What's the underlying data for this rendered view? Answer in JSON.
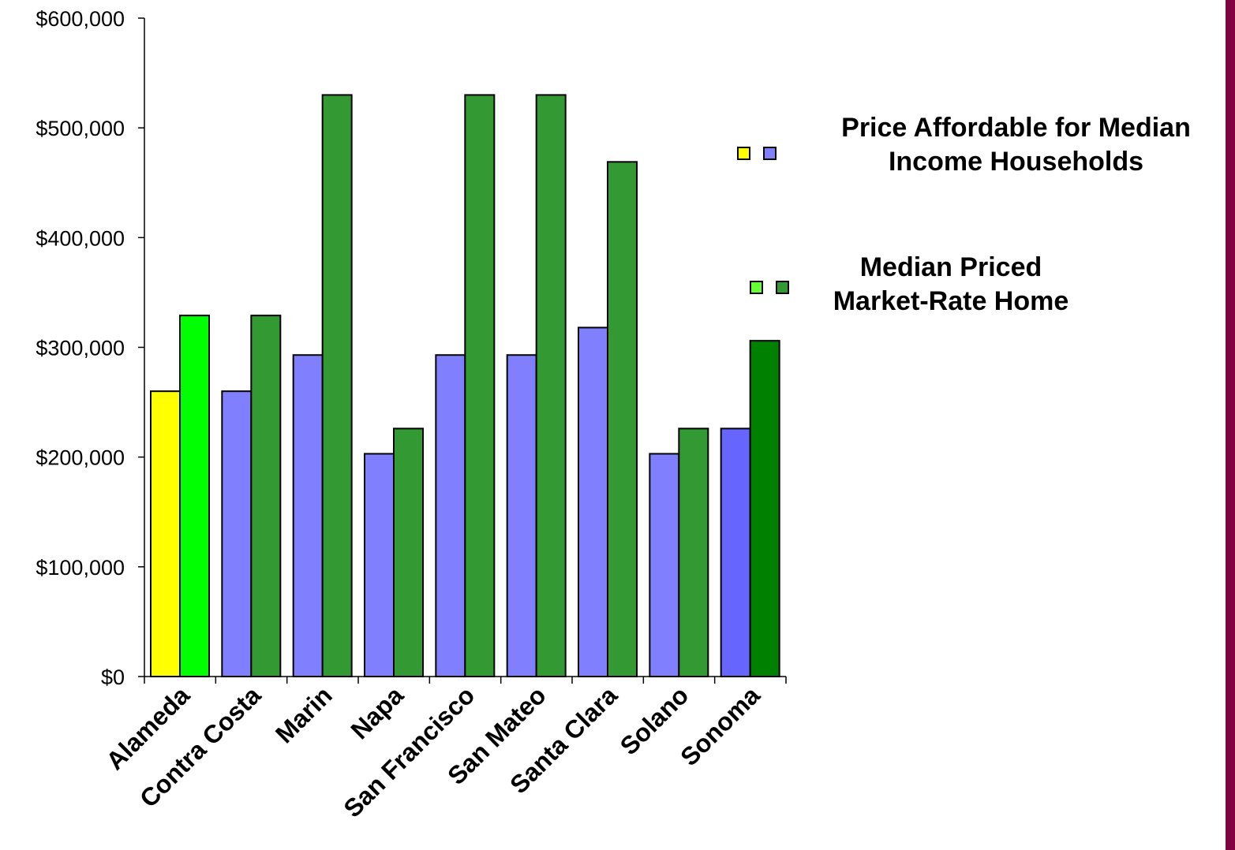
{
  "chart_data": {
    "type": "bar",
    "categories": [
      "Alameda",
      "Contra Costa",
      "Marin",
      "Napa",
      "San Francisco",
      "San Mateo",
      "Santa Clara",
      "Solano",
      "Sonoma"
    ],
    "series": [
      {
        "name": "Price Affordable for Median Income Households",
        "values": [
          260000,
          260000,
          293000,
          203000,
          293000,
          293000,
          318000,
          203000,
          226000
        ],
        "colors": [
          "#ffff00",
          "#8080ff",
          "#8080ff",
          "#8080ff",
          "#8080ff",
          "#8080ff",
          "#8080ff",
          "#8080ff",
          "#6666ff"
        ]
      },
      {
        "name": "Median Priced Market-Rate Home",
        "values": [
          329000,
          329000,
          530000,
          226000,
          530000,
          530000,
          469000,
          226000,
          306000
        ],
        "colors": [
          "#00ff00",
          "#339933",
          "#339933",
          "#339933",
          "#339933",
          "#339933",
          "#339933",
          "#339933",
          "#008000"
        ]
      }
    ],
    "yticks": [
      "$0",
      "$100,000",
      "$200,000",
      "$300,000",
      "$400,000",
      "$500,000",
      "$600,000"
    ],
    "ylim": [
      0,
      600000
    ],
    "title": "",
    "xlabel": "",
    "ylabel": "",
    "legend": {
      "placement": "right",
      "entries": [
        {
          "label_line1": "Price Affordable for Median",
          "label_line2": "Income Households",
          "swatch_colors": [
            "#ffff00",
            "#8080ff"
          ]
        },
        {
          "label_line1": "Median Priced",
          "label_line2": "Market-Rate Home",
          "swatch_colors": [
            "#66ff33",
            "#339933"
          ]
        }
      ]
    },
    "grid": false
  },
  "colors": {
    "right_strip": "#800040",
    "bar_outline": "#000000"
  }
}
